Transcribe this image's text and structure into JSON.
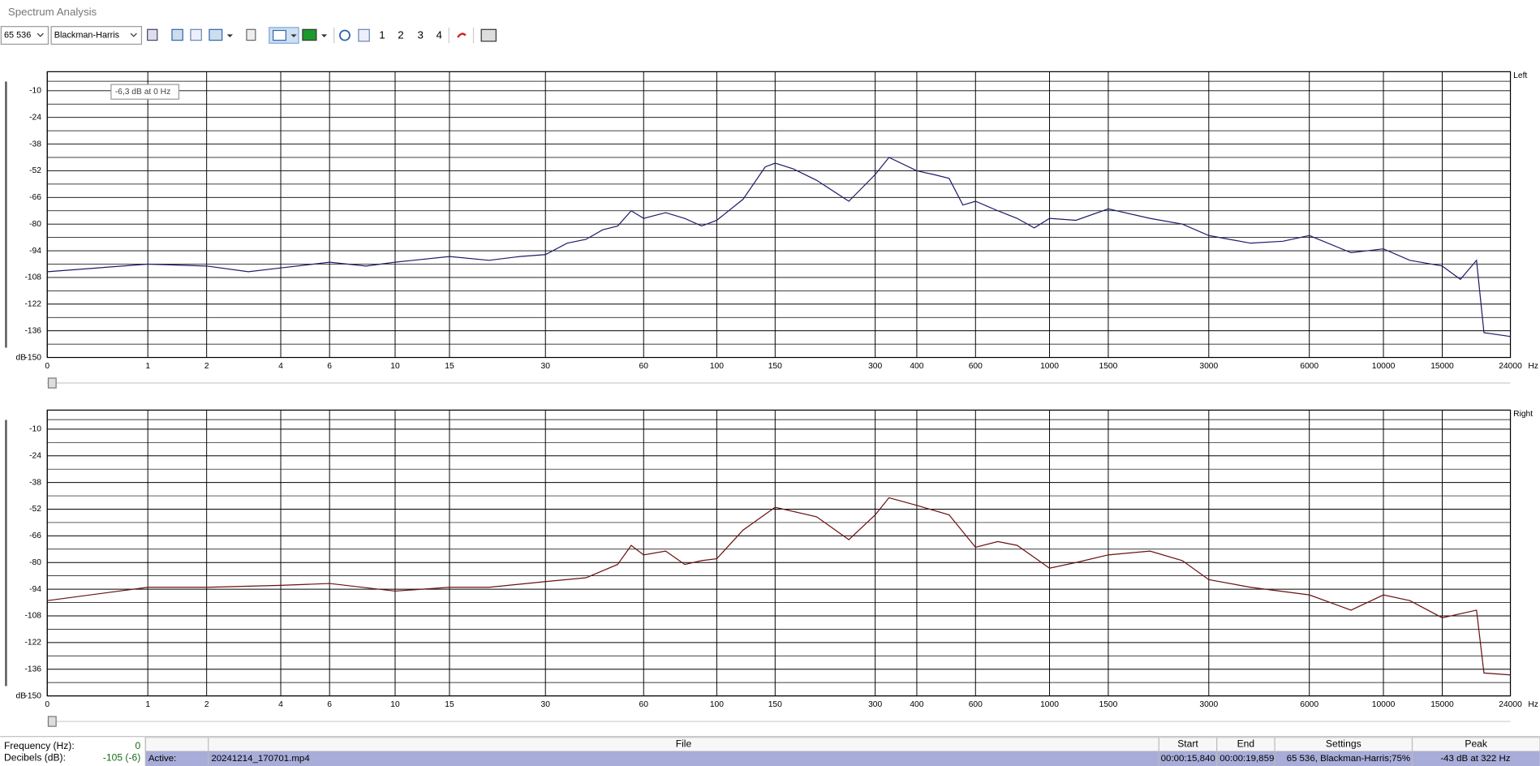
{
  "window_title": "Spectrum Analysis",
  "toolbar": {
    "fft_size": "65 536",
    "window": "Blackman-Harris",
    "buttons": [
      "1",
      "2",
      "3",
      "4"
    ]
  },
  "tooltip": "-6,3 dB at 0 Hz",
  "chart_data": [
    {
      "type": "line",
      "x_unit": "Hz",
      "y_unit": "dB",
      "xscale": "log1p",
      "grid": true,
      "xlim": [
        0,
        24000
      ],
      "xticks": [
        0,
        1,
        2,
        4,
        6,
        10,
        15,
        30,
        60,
        100,
        150,
        300,
        400,
        600,
        1000,
        1500,
        3000,
        6000,
        10000,
        15000,
        24000
      ],
      "ylim": [
        -150,
        0
      ],
      "yticks": [
        -10,
        -24,
        -38,
        -52,
        -66,
        -80,
        -94,
        -108,
        -122,
        -136,
        -150
      ],
      "x": [
        0,
        1,
        2,
        3,
        4,
        6,
        8,
        10,
        15,
        20,
        25,
        30,
        35,
        40,
        45,
        50,
        55,
        60,
        70,
        80,
        90,
        100,
        120,
        140,
        150,
        170,
        200,
        250,
        300,
        330,
        400,
        450,
        500,
        550,
        600,
        700,
        800,
        900,
        1000,
        1200,
        1500,
        2000,
        2500,
        3000,
        4000,
        5000,
        6000,
        8000,
        10000,
        12000,
        15000,
        17000,
        19000,
        20000,
        24000
      ],
      "series": [
        {
          "name": "Left",
          "color": "#1c1c6b",
          "values": [
            -105,
            -101,
            -102,
            -105,
            -103,
            -100,
            -102,
            -100,
            -97,
            -99,
            -97,
            -96,
            -90,
            -88,
            -83,
            -81,
            -73,
            -77,
            -74,
            -77,
            -81,
            -78,
            -67,
            -50,
            -48,
            -51,
            -57,
            -68,
            -54,
            -45,
            -52,
            -54,
            -56,
            -70,
            -68,
            -73,
            -77,
            -82,
            -77,
            -78,
            -72,
            -77,
            -80,
            -86,
            -90,
            -89,
            -86,
            -95,
            -93,
            -99,
            -102,
            -109,
            -99,
            -137,
            -139
          ]
        }
      ]
    },
    {
      "type": "line",
      "x_unit": "Hz",
      "y_unit": "dB",
      "xscale": "log1p",
      "grid": true,
      "xlim": [
        0,
        24000
      ],
      "xticks": [
        0,
        1,
        2,
        4,
        6,
        10,
        15,
        30,
        60,
        100,
        150,
        300,
        400,
        600,
        1000,
        1500,
        3000,
        6000,
        10000,
        15000,
        24000
      ],
      "ylim": [
        -150,
        0
      ],
      "yticks": [
        -10,
        -24,
        -38,
        -52,
        -66,
        -80,
        -94,
        -108,
        -122,
        -136,
        -150
      ],
      "x": [
        0,
        1,
        2,
        4,
        6,
        10,
        15,
        20,
        30,
        40,
        50,
        55,
        60,
        70,
        80,
        90,
        100,
        120,
        150,
        200,
        250,
        300,
        330,
        400,
        500,
        600,
        700,
        800,
        1000,
        1200,
        1500,
        2000,
        2500,
        3000,
        4000,
        6000,
        8000,
        10000,
        12000,
        15000,
        19000,
        20000,
        24000
      ],
      "series": [
        {
          "name": "Right",
          "color": "#6b1010",
          "values": [
            -100,
            -93,
            -93,
            -92,
            -91,
            -95,
            -93,
            -93,
            -90,
            -88,
            -81,
            -71,
            -76,
            -74,
            -81,
            -79,
            -78,
            -63,
            -51,
            -56,
            -68,
            -55,
            -46,
            -50,
            -55,
            -72,
            -69,
            -71,
            -83,
            -80,
            -76,
            -74,
            -79,
            -89,
            -93,
            -97,
            -105,
            -97,
            -100,
            -109,
            -105,
            -138,
            -139
          ]
        }
      ]
    }
  ],
  "status": {
    "frequency_label": "Frequency (Hz):",
    "frequency": "0",
    "decibels_label": "Decibels (dB):",
    "decibels": "-105 (-6)",
    "headers": [
      "File",
      "Start",
      "End",
      "Settings",
      "Peak"
    ],
    "row": [
      "Active:",
      "20241214_170701.mp4",
      "00:00:15,840",
      "00:00:19,859",
      "65 536, Blackman-Harris;75%",
      "-43 dB at 322 Hz"
    ]
  }
}
